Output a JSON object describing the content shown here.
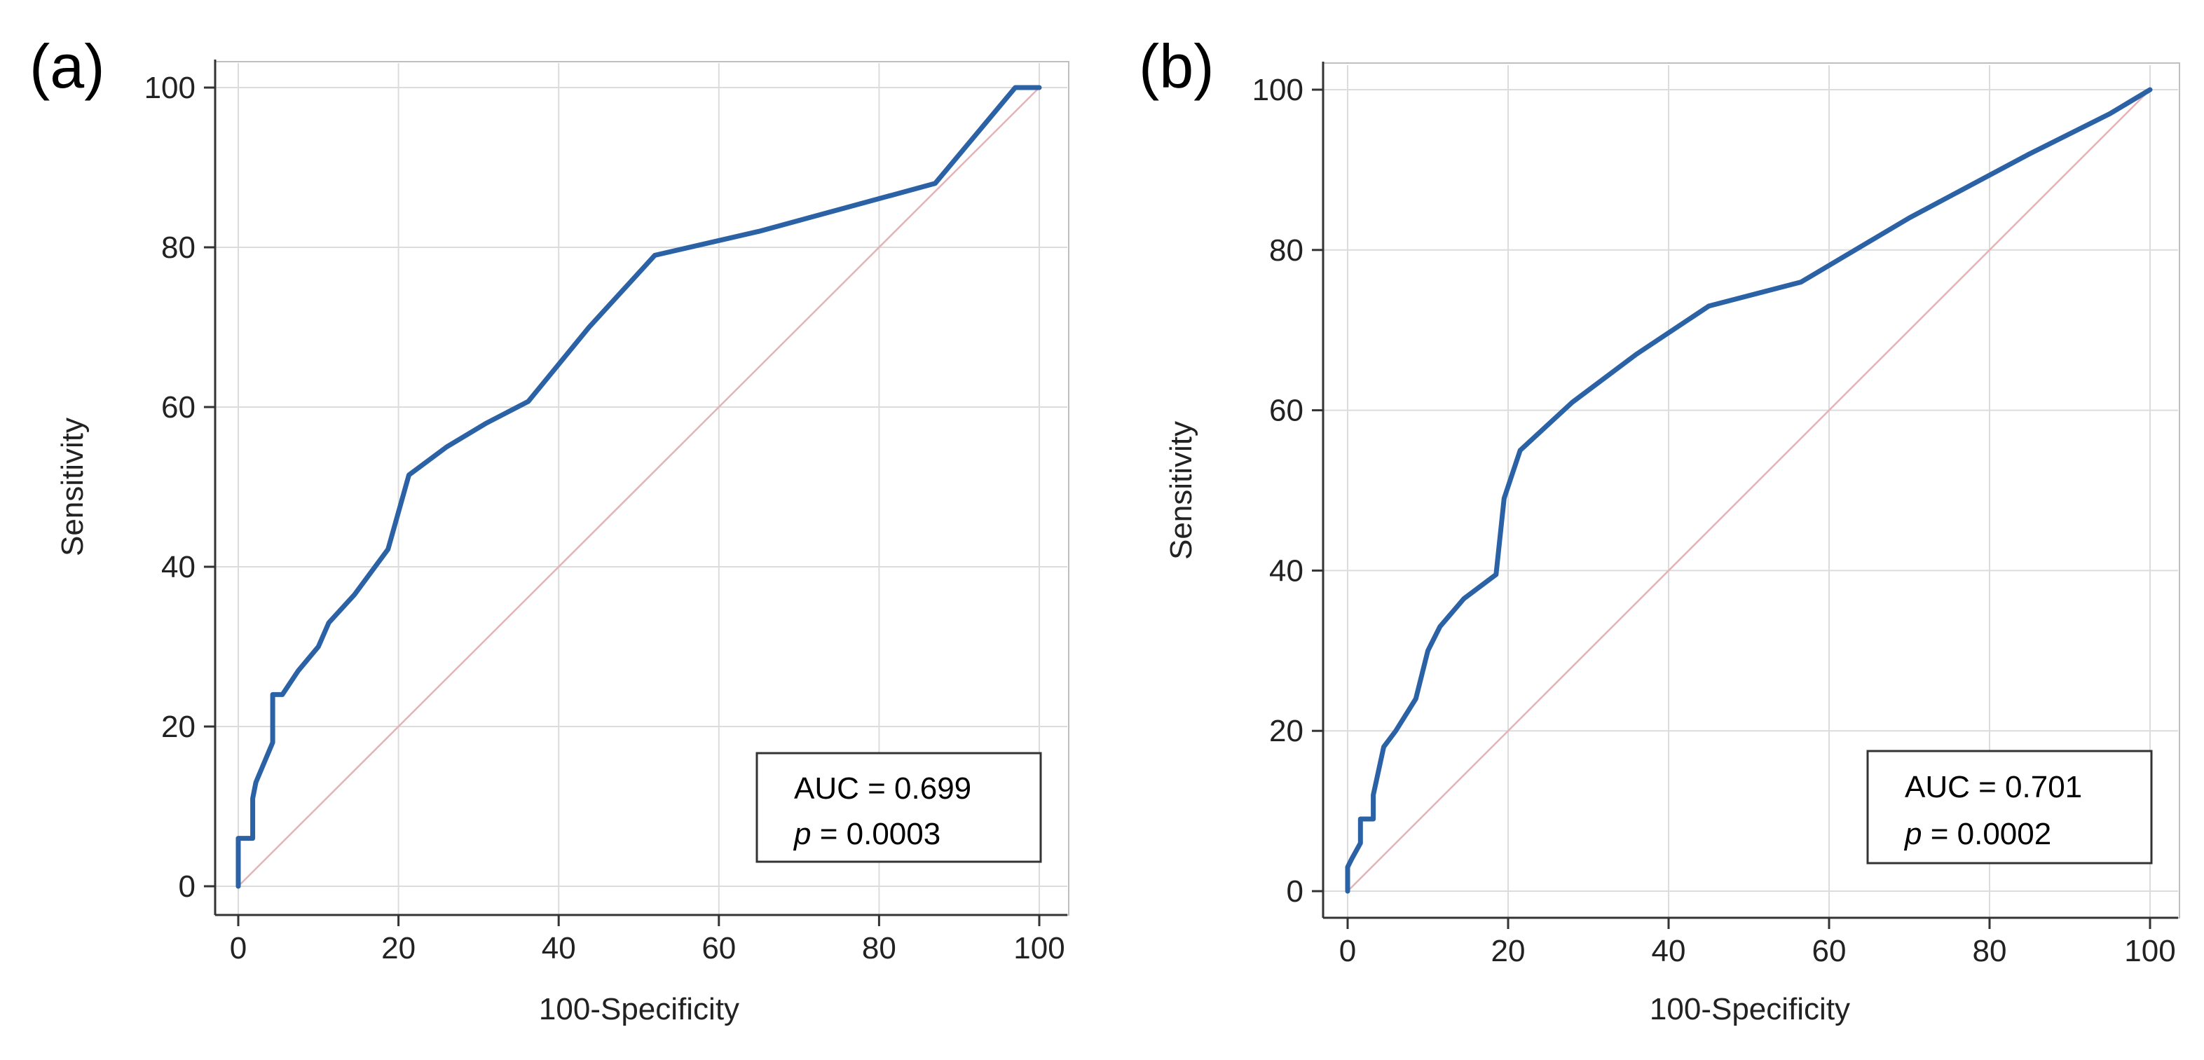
{
  "colors": {
    "roc_curve": "#2b62a6",
    "reference_line": "#e3b3b7",
    "grid": "#dcdcdc",
    "axis": "#333333"
  },
  "chart_data": [
    {
      "type": "line",
      "panel_label": "(a)",
      "xlabel": "100-Specificity",
      "ylabel": "Sensitivity",
      "xlim": [
        0,
        100
      ],
      "ylim": [
        0,
        100
      ],
      "xticks": [
        "0",
        "20",
        "40",
        "60",
        "80",
        "100"
      ],
      "yticks": [
        "0",
        "20",
        "40",
        "60",
        "80",
        "100"
      ],
      "grid": true,
      "annotation": {
        "auc_text": "AUC = 0.699",
        "p_symbol": "p",
        "p_rest": " = 0.0003"
      },
      "series": [
        {
          "name": "ROC curve",
          "x": [
            0,
            0,
            1.8,
            1.8,
            2.2,
            4.3,
            4.3,
            5.5,
            7.5,
            10,
            11.3,
            14.5,
            18.7,
            21.3,
            26,
            31,
            36.2,
            43.8,
            52,
            65,
            87,
            97,
            100
          ],
          "y": [
            0,
            6,
            6,
            11,
            13,
            18,
            24,
            24,
            27,
            30,
            33,
            36.5,
            42.2,
            51.5,
            55,
            58,
            60.7,
            70,
            79,
            82,
            88,
            100,
            100
          ]
        },
        {
          "name": "Reference line",
          "x": [
            0,
            100
          ],
          "y": [
            0,
            100
          ]
        }
      ]
    },
    {
      "type": "line",
      "panel_label": "(b)",
      "xlabel": "100-Specificity",
      "ylabel": "Sensitivity",
      "xlim": [
        0,
        100
      ],
      "ylim": [
        0,
        100
      ],
      "xticks": [
        "0",
        "20",
        "40",
        "60",
        "80",
        "100"
      ],
      "yticks": [
        "0",
        "20",
        "40",
        "60",
        "80",
        "100"
      ],
      "grid": true,
      "annotation": {
        "auc_text": "AUC = 0.701",
        "p_symbol": "p",
        "p_rest": " = 0.0002"
      },
      "series": [
        {
          "name": "ROC curve",
          "x": [
            0,
            0,
            0.5,
            1.6,
            1.6,
            3.2,
            3.2,
            4.5,
            6,
            8.5,
            10,
            11.5,
            14.5,
            18.5,
            19.5,
            21.5,
            28,
            36,
            45,
            56.5,
            70,
            85,
            95,
            100
          ],
          "y": [
            0,
            3,
            4,
            6,
            9,
            9,
            12,
            18,
            20,
            24,
            30,
            33,
            36.5,
            39.5,
            49,
            55,
            61,
            67,
            73,
            76,
            84,
            92,
            97,
            100
          ]
        },
        {
          "name": "Reference line",
          "x": [
            0,
            100
          ],
          "y": [
            0,
            100
          ]
        }
      ]
    }
  ]
}
